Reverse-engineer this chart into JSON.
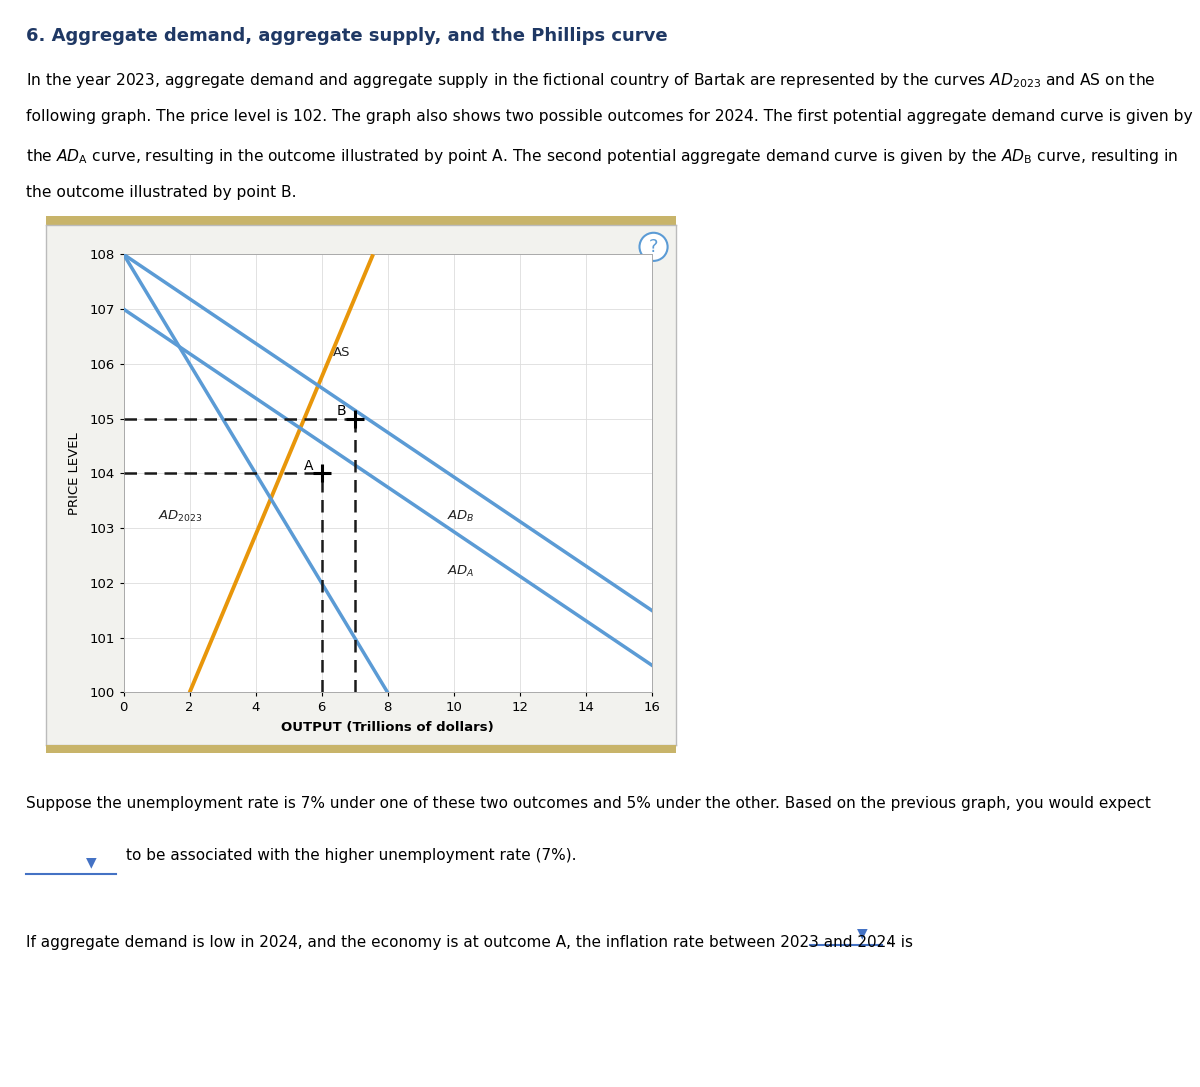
{
  "title": "6. Aggregate demand, aggregate supply, and the Phillips curve",
  "para_lines": [
    "In the year 2023, aggregate demand and aggregate supply in the fictional country of Bartak are represented by the curves $\\mathit{AD}_{2023}$ and AS on the",
    "following graph. The price level is 102. The graph also shows two possible outcomes for 2024. The first potential aggregate demand curve is given by",
    "the $\\mathit{AD}_{\\mathrm{A}}$ curve, resulting in the outcome illustrated by point A. The second potential aggregate demand curve is given by the $\\mathit{AD}_{\\mathrm{B}}$ curve, resulting in",
    "the outcome illustrated by point B."
  ],
  "xlabel": "OUTPUT (Trillions of dollars)",
  "ylabel": "PRICE LEVEL",
  "xlim": [
    0,
    16
  ],
  "ylim": [
    100,
    108
  ],
  "xticks": [
    0,
    2,
    4,
    6,
    8,
    10,
    12,
    14,
    16
  ],
  "yticks": [
    100,
    101,
    102,
    103,
    104,
    105,
    106,
    107,
    108
  ],
  "as_color": "#E8960A",
  "ad_color": "#5B9BD5",
  "dashed_color": "#1A1A1A",
  "bg_outer": "#F2F2EE",
  "bg_inner": "#FFFFFF",
  "border_color": "#BBBBBB",
  "gold_bar_color": "#C8B46A",
  "as_x1": 2.0,
  "as_y1": 100.0,
  "as_x2": 7.56,
  "as_y2": 108.0,
  "ad2023_x1": 0.0,
  "ad2023_y1": 108.0,
  "ad2023_x2": 8.0,
  "ad2023_y2": 100.0,
  "ada_x1": 0.0,
  "ada_y1": 107.0,
  "ada_x2": 16.0,
  "ada_y2": 100.5,
  "adb_x1": 0.0,
  "adb_y1": 108.0,
  "adb_x2": 16.0,
  "adb_y2": 101.5,
  "point_A": [
    6.0,
    104.0
  ],
  "point_B": [
    7.0,
    105.0
  ],
  "qmark_color": "#5B9BD5",
  "dropdown_color": "#4472C4",
  "title_color": "#1F3864",
  "figsize": [
    12.0,
    10.87
  ],
  "dpi": 100
}
